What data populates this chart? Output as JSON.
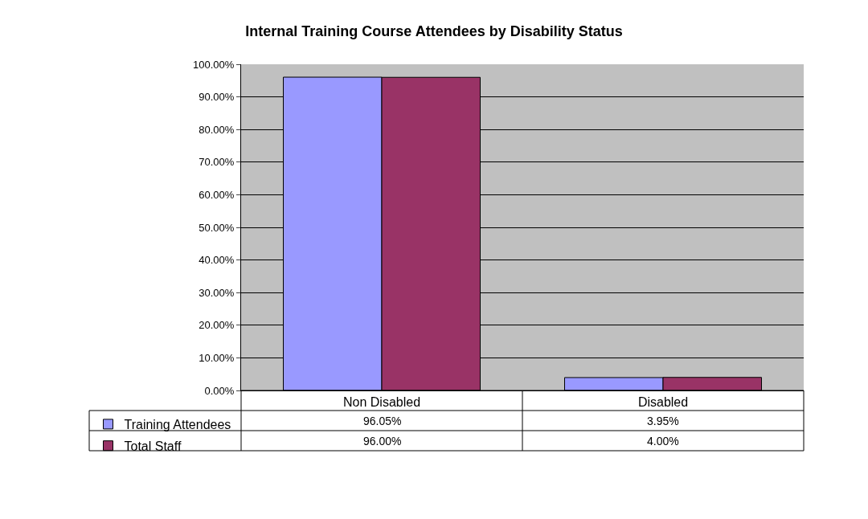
{
  "chart_data": {
    "type": "bar",
    "title": "Internal Training Course Attendees by Disability Status",
    "categories": [
      "Non Disabled",
      "Disabled"
    ],
    "series": [
      {
        "name": "Training Attendees",
        "color": "#9999ff",
        "values": [
          96.05,
          3.95
        ],
        "value_labels": [
          "96.05%",
          "3.95%"
        ]
      },
      {
        "name": "Total Staff",
        "color": "#993366",
        "values": [
          96.0,
          4.0
        ],
        "value_labels": [
          "96.00%",
          "4.00%"
        ]
      }
    ],
    "ylim": [
      0,
      100
    ],
    "yticks": [
      {
        "value": 0,
        "label": "0.00%"
      },
      {
        "value": 10,
        "label": "10.00%"
      },
      {
        "value": 20,
        "label": "20.00%"
      },
      {
        "value": 30,
        "label": "30.00%"
      },
      {
        "value": 40,
        "label": "40.00%"
      },
      {
        "value": 50,
        "label": "50.00%"
      },
      {
        "value": 60,
        "label": "60.00%"
      },
      {
        "value": 70,
        "label": "70.00%"
      },
      {
        "value": 80,
        "label": "80.00%"
      },
      {
        "value": 90,
        "label": "90.00%"
      },
      {
        "value": 100,
        "label": "100.00%"
      }
    ],
    "grid": "y",
    "legend": "bottom left"
  }
}
